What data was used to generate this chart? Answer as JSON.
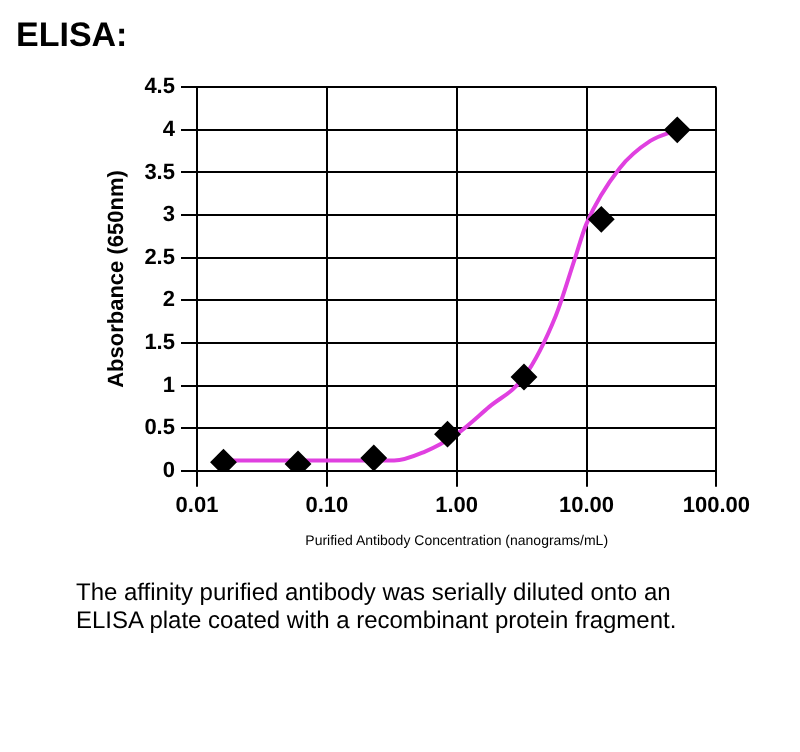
{
  "chart_data": {
    "type": "scatter",
    "title": "ELISA:",
    "xlabel": "Purified Antibody Concentration (nanograms/mL)",
    "ylabel": "Absorbance (650nm)",
    "log": "x",
    "xlim": [
      0.01,
      100
    ],
    "xticks": [
      0.01,
      {
        "value": 0.1,
        "label": "0.10"
      },
      {
        "value": 1,
        "label": "1.00"
      },
      {
        "value": 10,
        "label": "10.00"
      },
      {
        "value": 100,
        "label": "100.00"
      }
    ],
    "ylim": [
      0,
      4.5
    ],
    "yticks": [
      0,
      0.5,
      1,
      1.5,
      2,
      2.5,
      3,
      3.5,
      4,
      4.5
    ],
    "grid": true,
    "legend": false,
    "series": [
      {
        "marker": "diamond",
        "color": "#000000",
        "x": [
          0.016,
          0.06,
          0.23,
          0.85,
          3.3,
          13,
          50
        ],
        "values": [
          0.1,
          0.08,
          0.15,
          0.43,
          1.1,
          2.95,
          4.0
        ]
      },
      {
        "type": "line",
        "marker": "none",
        "color": "#e040e0",
        "x": [
          0.015,
          0.1,
          0.33,
          0.56,
          1,
          1.78,
          3.3,
          5.8,
          8.1,
          10,
          18,
          31,
          50
        ],
        "values": [
          0.12,
          0.12,
          0.12,
          0.22,
          0.43,
          0.75,
          1.1,
          1.82,
          2.48,
          2.9,
          3.55,
          3.87,
          4.0
        ]
      }
    ],
    "annotations": [
      "The affinity purified antibody was serially diluted onto an ELISA plate coated with a recombinant protein fragment."
    ]
  }
}
